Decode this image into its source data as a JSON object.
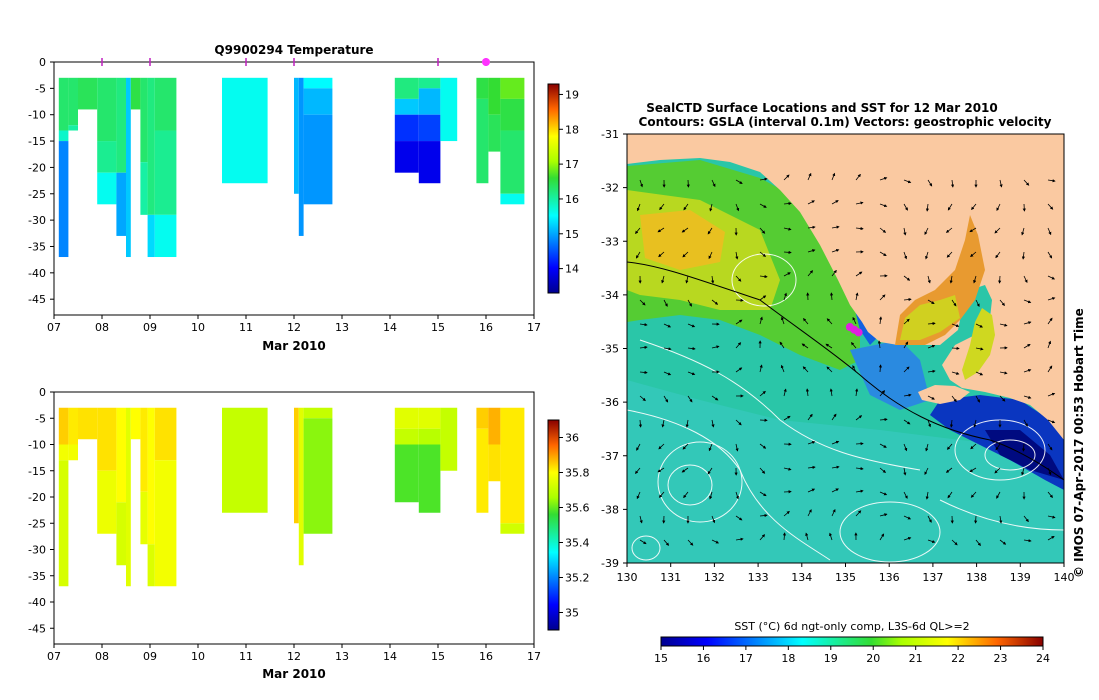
{
  "chart_data": [
    {
      "type": "heatmap",
      "title": "Q9900294  Temperature",
      "xlabel": "Mar 2010",
      "x_ticks": [
        "07",
        "08",
        "09",
        "10",
        "11",
        "12",
        "13",
        "14",
        "15",
        "16",
        "17"
      ],
      "xlim": [
        7,
        17
      ],
      "y_ticks": [
        0,
        -5,
        -10,
        -15,
        -20,
        -25,
        -30,
        -35,
        -40,
        -45
      ],
      "ylim": [
        -48,
        0
      ],
      "colorbar": {
        "ticks": [
          14,
          15,
          16,
          17,
          18,
          19
        ],
        "range": [
          13.3,
          19.3
        ]
      },
      "profile_markers_x": [
        8.0,
        9.0,
        11.0,
        12.0,
        15.0,
        16.0
      ],
      "highlight_marker_x": 16.0,
      "profiles": [
        {
          "x0": 7.1,
          "x1": 7.3,
          "cells": [
            [
              -3,
              -13,
              16.3
            ],
            [
              -13,
              -15,
              15.8
            ],
            [
              -15,
              -37,
              14.8
            ]
          ]
        },
        {
          "x0": 7.3,
          "x1": 7.5,
          "cells": [
            [
              -3,
              -12,
              16.3
            ],
            [
              -12,
              -13,
              16.0
            ]
          ]
        },
        {
          "x0": 7.5,
          "x1": 7.9,
          "cells": [
            [
              -3,
              -9,
              16.4
            ]
          ]
        },
        {
          "x0": 7.9,
          "x1": 8.3,
          "cells": [
            [
              -3,
              -15,
              16.3
            ],
            [
              -15,
              -21,
              16.1
            ],
            [
              -21,
              -27,
              15.6
            ]
          ]
        },
        {
          "x0": 8.3,
          "x1": 8.5,
          "cells": [
            [
              -3,
              -21,
              16.2
            ],
            [
              -21,
              -33,
              15.0
            ]
          ]
        },
        {
          "x0": 8.5,
          "x1": 8.6,
          "cells": [
            [
              -3,
              -37,
              15.2
            ]
          ]
        },
        {
          "x0": 8.6,
          "x1": 8.8,
          "cells": [
            [
              -3,
              -9,
              16.5
            ]
          ]
        },
        {
          "x0": 8.8,
          "x1": 8.95,
          "cells": [
            [
              -3,
              -19,
              16.3
            ],
            [
              -19,
              -29,
              16.0
            ]
          ]
        },
        {
          "x0": 8.95,
          "x1": 9.1,
          "cells": [
            [
              -3,
              -29,
              16.2
            ],
            [
              -29,
              -37,
              15.3
            ]
          ]
        },
        {
          "x0": 9.1,
          "x1": 9.55,
          "cells": [
            [
              -3,
              -13,
              16.3
            ],
            [
              -13,
              -29,
              16.1
            ],
            [
              -29,
              -37,
              15.6
            ]
          ]
        },
        {
          "x0": 10.5,
          "x1": 11.45,
          "cells": [
            [
              -3,
              -23,
              15.6
            ]
          ]
        },
        {
          "x0": 12.0,
          "x1": 12.1,
          "cells": [
            [
              -3,
              -25,
              15.1
            ]
          ]
        },
        {
          "x0": 12.1,
          "x1": 12.2,
          "cells": [
            [
              -3,
              -33,
              14.9
            ]
          ]
        },
        {
          "x0": 12.2,
          "x1": 12.8,
          "cells": [
            [
              -3,
              -5,
              15.5
            ],
            [
              -5,
              -10,
              15.1
            ],
            [
              -10,
              -27,
              14.9
            ]
          ]
        },
        {
          "x0": 14.1,
          "x1": 14.6,
          "cells": [
            [
              -3,
              -7,
              16.2
            ],
            [
              -7,
              -10,
              15.2
            ],
            [
              -10,
              -15,
              14.3
            ],
            [
              -15,
              -21,
              13.9
            ]
          ]
        },
        {
          "x0": 14.6,
          "x1": 15.05,
          "cells": [
            [
              -3,
              -5,
              16.1
            ],
            [
              -5,
              -10,
              15.1
            ],
            [
              -10,
              -15,
              14.4
            ],
            [
              -15,
              -23,
              13.9
            ]
          ]
        },
        {
          "x0": 15.05,
          "x1": 15.4,
          "cells": [
            [
              -3,
              -15,
              15.6
            ]
          ]
        },
        {
          "x0": 15.8,
          "x1": 16.05,
          "cells": [
            [
              -3,
              -7,
              16.5
            ],
            [
              -7,
              -23,
              16.3
            ]
          ]
        },
        {
          "x0": 16.05,
          "x1": 16.3,
          "cells": [
            [
              -3,
              -10,
              16.6
            ],
            [
              -10,
              -17,
              16.4
            ]
          ]
        },
        {
          "x0": 16.3,
          "x1": 16.8,
          "cells": [
            [
              -3,
              -7,
              16.8
            ],
            [
              -7,
              -13,
              16.5
            ],
            [
              -13,
              -25,
              16.3
            ],
            [
              -25,
              -27,
              15.6
            ]
          ]
        }
      ]
    },
    {
      "type": "heatmap",
      "xlabel": "Mar 2010",
      "x_ticks": [
        "07",
        "08",
        "09",
        "10",
        "11",
        "12",
        "13",
        "14",
        "15",
        "16",
        "17"
      ],
      "xlim": [
        7,
        17
      ],
      "y_ticks": [
        0,
        -5,
        -10,
        -15,
        -20,
        -25,
        -30,
        -35,
        -40,
        -45
      ],
      "ylim": [
        -48,
        0
      ],
      "colorbar": {
        "ticks": [
          35,
          35.2,
          35.4,
          35.6,
          35.8,
          36
        ],
        "range": [
          34.9,
          36.1
        ]
      },
      "profiles": [
        {
          "x0": 7.1,
          "x1": 7.3,
          "cells": [
            [
              -3,
              -10,
              35.85
            ],
            [
              -10,
              -13,
              35.78
            ],
            [
              -13,
              -37,
              35.73
            ]
          ]
        },
        {
          "x0": 7.3,
          "x1": 7.5,
          "cells": [
            [
              -3,
              -10,
              35.82
            ],
            [
              -10,
              -13,
              35.78
            ]
          ]
        },
        {
          "x0": 7.5,
          "x1": 7.9,
          "cells": [
            [
              -3,
              -9,
              35.83
            ]
          ]
        },
        {
          "x0": 7.9,
          "x1": 8.3,
          "cells": [
            [
              -3,
              -15,
              35.83
            ],
            [
              -15,
              -27,
              35.77
            ]
          ]
        },
        {
          "x0": 8.3,
          "x1": 8.5,
          "cells": [
            [
              -3,
              -21,
              35.8
            ],
            [
              -21,
              -33,
              35.73
            ]
          ]
        },
        {
          "x0": 8.5,
          "x1": 8.6,
          "cells": [
            [
              -3,
              -37,
              35.75
            ]
          ]
        },
        {
          "x0": 8.6,
          "x1": 8.8,
          "cells": [
            [
              -3,
              -9,
              35.8
            ]
          ]
        },
        {
          "x0": 8.8,
          "x1": 8.95,
          "cells": [
            [
              -3,
              -19,
              35.82
            ],
            [
              -19,
              -29,
              35.76
            ]
          ]
        },
        {
          "x0": 8.95,
          "x1": 9.1,
          "cells": [
            [
              -3,
              -29,
              35.8
            ],
            [
              -29,
              -37,
              35.74
            ]
          ]
        },
        {
          "x0": 9.1,
          "x1": 9.55,
          "cells": [
            [
              -3,
              -13,
              35.83
            ],
            [
              -13,
              -37,
              35.78
            ]
          ]
        },
        {
          "x0": 10.5,
          "x1": 11.45,
          "cells": [
            [
              -3,
              -23,
              35.7
            ]
          ]
        },
        {
          "x0": 12.0,
          "x1": 12.1,
          "cells": [
            [
              -3,
              -25,
              35.85
            ]
          ]
        },
        {
          "x0": 12.1,
          "x1": 12.2,
          "cells": [
            [
              -3,
              -33,
              35.75
            ]
          ]
        },
        {
          "x0": 12.2,
          "x1": 12.8,
          "cells": [
            [
              -3,
              -5,
              35.7
            ],
            [
              -5,
              -27,
              35.63
            ]
          ]
        },
        {
          "x0": 14.1,
          "x1": 14.6,
          "cells": [
            [
              -3,
              -7,
              35.75
            ],
            [
              -7,
              -10,
              35.7
            ],
            [
              -10,
              -21,
              35.58
            ]
          ]
        },
        {
          "x0": 14.6,
          "x1": 15.05,
          "cells": [
            [
              -3,
              -7,
              35.75
            ],
            [
              -7,
              -10,
              35.68
            ],
            [
              -10,
              -23,
              35.58
            ]
          ]
        },
        {
          "x0": 15.05,
          "x1": 15.4,
          "cells": [
            [
              -3,
              -15,
              35.7
            ]
          ]
        },
        {
          "x0": 15.8,
          "x1": 16.05,
          "cells": [
            [
              -3,
              -7,
              35.85
            ],
            [
              -7,
              -23,
              35.82
            ]
          ]
        },
        {
          "x0": 16.05,
          "x1": 16.3,
          "cells": [
            [
              -3,
              -10,
              35.88
            ],
            [
              -10,
              -17,
              35.83
            ]
          ]
        },
        {
          "x0": 16.3,
          "x1": 16.8,
          "cells": [
            [
              -3,
              -25,
              35.82
            ],
            [
              -25,
              -27,
              35.72
            ]
          ]
        }
      ]
    },
    {
      "type": "heatmap",
      "title_line1": "SealCTD Surface Locations and SST for 12 Mar 2010",
      "title_line2": "Contours: GSLA (interval 0.1m) Vectors: geostrophic velocity",
      "x_ticks": [
        130,
        131,
        132,
        133,
        134,
        135,
        136,
        137,
        138,
        139,
        140
      ],
      "xlim": [
        130,
        140
      ],
      "y_ticks": [
        -31,
        -32,
        -33,
        -34,
        -35,
        -36,
        -37,
        -38,
        -39
      ],
      "ylim": [
        -39,
        -31
      ],
      "side_label": "© IMOS 07-Apr-2017 00:53 Hobart Time",
      "colorbar_label": "SST (°C) 6d ngt-only comp, L3S-6d QL>=2",
      "colorbar": {
        "ticks": [
          15,
          16,
          17,
          18,
          19,
          20,
          21,
          22,
          23,
          24
        ],
        "range": [
          15,
          24
        ]
      },
      "seal_locations": [
        [
          135.1,
          -34.6
        ],
        [
          135.2,
          -34.65
        ],
        [
          135.3,
          -34.7
        ]
      ],
      "colors": {
        "land": "#fac9a1",
        "seal": "#e020e0",
        "contour": "#ffffff"
      }
    }
  ]
}
